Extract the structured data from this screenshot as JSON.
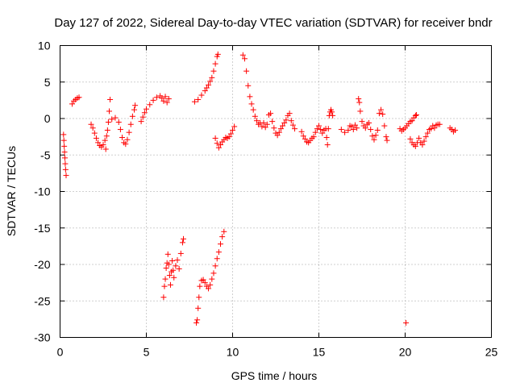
{
  "chart_data": {
    "type": "scatter",
    "title": "Day 127 of 2022, Sidereal Day-to-day VTEC variation (SDTVAR) for receiver bndr",
    "xlabel": "GPS time / hours",
    "ylabel": "SDTVAR / TECUs",
    "xlim": [
      0,
      25
    ],
    "ylim": [
      -30,
      10
    ],
    "xticks": [
      "0",
      "5",
      "10",
      "15",
      "20",
      "25"
    ],
    "yticks": [
      "10",
      "5",
      "0",
      "-5",
      "-10",
      "-15",
      "-20",
      "-25",
      "-30"
    ],
    "grid": true,
    "marker": "+",
    "marker_color": "#ff0000",
    "series": [
      {
        "name": "SDTVAR",
        "points": [
          [
            0.2,
            -2.2
          ],
          [
            0.22,
            -3.0
          ],
          [
            0.24,
            -3.8
          ],
          [
            0.26,
            -4.6
          ],
          [
            0.28,
            -5.4
          ],
          [
            0.3,
            -6.2
          ],
          [
            0.32,
            -7.0
          ],
          [
            0.35,
            -7.8
          ],
          [
            0.7,
            2.0
          ],
          [
            0.8,
            2.4
          ],
          [
            0.9,
            2.6
          ],
          [
            1.0,
            2.8
          ],
          [
            1.1,
            2.9
          ],
          [
            1.8,
            -0.8
          ],
          [
            1.9,
            -1.3
          ],
          [
            2.0,
            -2.0
          ],
          [
            2.1,
            -2.7
          ],
          [
            2.2,
            -3.3
          ],
          [
            2.3,
            -3.7
          ],
          [
            2.4,
            -3.9
          ],
          [
            2.5,
            -3.6
          ],
          [
            2.6,
            -3.0
          ],
          [
            2.65,
            -4.2
          ],
          [
            2.7,
            -2.4
          ],
          [
            2.75,
            -1.6
          ],
          [
            2.8,
            -0.5
          ],
          [
            2.85,
            1.0
          ],
          [
            2.9,
            2.6
          ],
          [
            3.0,
            -0.1
          ],
          [
            3.2,
            0.1
          ],
          [
            3.4,
            -0.5
          ],
          [
            3.5,
            -1.5
          ],
          [
            3.6,
            -2.6
          ],
          [
            3.7,
            -3.3
          ],
          [
            3.8,
            -3.5
          ],
          [
            3.9,
            -2.9
          ],
          [
            4.0,
            -1.9
          ],
          [
            4.1,
            -0.8
          ],
          [
            4.2,
            0.3
          ],
          [
            4.3,
            1.2
          ],
          [
            4.35,
            1.8
          ],
          [
            4.7,
            -0.4
          ],
          [
            4.8,
            0.2
          ],
          [
            4.9,
            0.8
          ],
          [
            5.0,
            1.3
          ],
          [
            5.2,
            1.9
          ],
          [
            5.4,
            2.5
          ],
          [
            5.6,
            2.9
          ],
          [
            5.8,
            3.1
          ],
          [
            5.9,
            2.8
          ],
          [
            6.0,
            2.4
          ],
          [
            6.1,
            3.0
          ],
          [
            6.2,
            2.2
          ],
          [
            6.3,
            2.7
          ],
          [
            6.0,
            -24.5
          ],
          [
            6.05,
            -23.0
          ],
          [
            6.1,
            -22.0
          ],
          [
            6.15,
            -20.5
          ],
          [
            6.2,
            -19.8
          ],
          [
            6.25,
            -18.6
          ],
          [
            6.3,
            -20.0
          ],
          [
            6.35,
            -21.5
          ],
          [
            6.4,
            -22.8
          ],
          [
            6.45,
            -21.0
          ],
          [
            6.5,
            -19.5
          ],
          [
            6.55,
            -20.8
          ],
          [
            6.6,
            -21.8
          ],
          [
            6.7,
            -20.2
          ],
          [
            6.8,
            -19.4
          ],
          [
            6.9,
            -20.6
          ],
          [
            7.0,
            -18.5
          ],
          [
            7.1,
            -17.0
          ],
          [
            7.15,
            -16.5
          ],
          [
            7.9,
            -28.0
          ],
          [
            7.95,
            -27.6
          ],
          [
            8.0,
            -26.0
          ],
          [
            8.05,
            -24.5
          ],
          [
            8.1,
            -23.0
          ],
          [
            8.2,
            -22.2
          ],
          [
            8.3,
            -22.1
          ],
          [
            8.4,
            -22.5
          ],
          [
            8.5,
            -23.0
          ],
          [
            8.6,
            -23.3
          ],
          [
            8.7,
            -22.8
          ],
          [
            8.8,
            -22.0
          ],
          [
            8.9,
            -21.2
          ],
          [
            9.0,
            -20.2
          ],
          [
            9.1,
            -19.2
          ],
          [
            9.2,
            -18.3
          ],
          [
            9.3,
            -17.2
          ],
          [
            9.4,
            -16.2
          ],
          [
            9.5,
            -15.5
          ],
          [
            7.8,
            2.3
          ],
          [
            8.0,
            2.6
          ],
          [
            8.2,
            3.2
          ],
          [
            8.4,
            3.8
          ],
          [
            8.5,
            4.2
          ],
          [
            8.6,
            4.6
          ],
          [
            8.7,
            5.1
          ],
          [
            8.8,
            5.6
          ],
          [
            8.9,
            6.5
          ],
          [
            9.0,
            7.5
          ],
          [
            9.1,
            8.5
          ],
          [
            9.15,
            8.8
          ],
          [
            9.0,
            -2.7
          ],
          [
            9.1,
            -3.4
          ],
          [
            9.2,
            -4.0
          ],
          [
            9.3,
            -3.6
          ],
          [
            9.4,
            -3.2
          ],
          [
            9.5,
            -2.9
          ],
          [
            9.6,
            -2.6
          ],
          [
            9.7,
            -2.7
          ],
          [
            9.8,
            -2.5
          ],
          [
            9.9,
            -2.1
          ],
          [
            10.0,
            -1.6
          ],
          [
            10.1,
            -1.1
          ],
          [
            10.6,
            8.7
          ],
          [
            10.7,
            8.2
          ],
          [
            10.8,
            6.5
          ],
          [
            10.9,
            4.5
          ],
          [
            11.0,
            3.0
          ],
          [
            11.1,
            2.0
          ],
          [
            11.2,
            1.2
          ],
          [
            11.3,
            0.3
          ],
          [
            11.4,
            -0.3
          ],
          [
            11.5,
            -0.8
          ],
          [
            11.6,
            -0.6
          ],
          [
            11.7,
            -1.1
          ],
          [
            11.8,
            -0.6
          ],
          [
            11.9,
            -1.2
          ],
          [
            12.0,
            -0.8
          ],
          [
            12.1,
            0.5
          ],
          [
            12.2,
            0.7
          ],
          [
            12.3,
            -0.4
          ],
          [
            12.4,
            -1.3
          ],
          [
            12.5,
            -2.0
          ],
          [
            12.6,
            -2.3
          ],
          [
            12.7,
            -1.9
          ],
          [
            12.8,
            -1.4
          ],
          [
            12.9,
            -1.0
          ],
          [
            13.0,
            -0.6
          ],
          [
            13.1,
            -0.2
          ],
          [
            13.2,
            0.4
          ],
          [
            13.3,
            0.7
          ],
          [
            13.4,
            -0.3
          ],
          [
            13.5,
            -0.9
          ],
          [
            13.6,
            -1.4
          ],
          [
            14.0,
            -1.8
          ],
          [
            14.1,
            -2.4
          ],
          [
            14.2,
            -2.8
          ],
          [
            14.3,
            -3.2
          ],
          [
            14.4,
            -3.3
          ],
          [
            14.5,
            -3.0
          ],
          [
            14.6,
            -2.7
          ],
          [
            14.7,
            -2.5
          ],
          [
            14.8,
            -1.9
          ],
          [
            14.9,
            -1.4
          ],
          [
            15.0,
            -1.0
          ],
          [
            15.1,
            -1.5
          ],
          [
            15.2,
            -2.0
          ],
          [
            15.3,
            -1.6
          ],
          [
            15.4,
            -1.4
          ],
          [
            15.45,
            -2.6
          ],
          [
            15.5,
            -3.6
          ],
          [
            15.55,
            -1.4
          ],
          [
            15.6,
            0.4
          ],
          [
            15.65,
            0.9
          ],
          [
            15.7,
            1.2
          ],
          [
            15.75,
            0.9
          ],
          [
            15.8,
            0.4
          ],
          [
            16.3,
            -1.5
          ],
          [
            16.5,
            -1.9
          ],
          [
            16.7,
            -1.6
          ],
          [
            16.8,
            -1.0
          ],
          [
            16.9,
            -1.1
          ],
          [
            17.0,
            -1.5
          ],
          [
            17.1,
            -0.9
          ],
          [
            17.2,
            -1.3
          ],
          [
            17.3,
            2.7
          ],
          [
            17.35,
            2.2
          ],
          [
            17.4,
            1.0
          ],
          [
            17.5,
            -0.4
          ],
          [
            17.6,
            -1.0
          ],
          [
            17.7,
            -1.3
          ],
          [
            17.8,
            -0.8
          ],
          [
            17.9,
            -0.6
          ],
          [
            18.0,
            -1.5
          ],
          [
            18.1,
            -2.4
          ],
          [
            18.2,
            -2.9
          ],
          [
            18.3,
            -2.3
          ],
          [
            18.4,
            -1.6
          ],
          [
            18.5,
            0.7
          ],
          [
            18.6,
            1.2
          ],
          [
            18.7,
            0.6
          ],
          [
            18.8,
            -1.0
          ],
          [
            18.9,
            -2.5
          ],
          [
            18.95,
            -3.0
          ],
          [
            20.05,
            -28.0
          ],
          [
            19.7,
            -1.4
          ],
          [
            19.8,
            -1.7
          ],
          [
            19.9,
            -1.5
          ],
          [
            20.0,
            -1.3
          ],
          [
            20.1,
            -1.0
          ],
          [
            20.2,
            -0.7
          ],
          [
            20.3,
            -0.4
          ],
          [
            20.4,
            -0.3
          ],
          [
            20.5,
            0.1
          ],
          [
            20.6,
            0.4
          ],
          [
            20.65,
            0.5
          ],
          [
            20.3,
            -2.8
          ],
          [
            20.4,
            -3.3
          ],
          [
            20.5,
            -3.6
          ],
          [
            20.6,
            -3.8
          ],
          [
            20.7,
            -3.3
          ],
          [
            20.8,
            -2.7
          ],
          [
            20.9,
            -3.3
          ],
          [
            21.0,
            -3.6
          ],
          [
            21.1,
            -3.1
          ],
          [
            21.2,
            -2.5
          ],
          [
            21.3,
            -2.0
          ],
          [
            21.4,
            -1.5
          ],
          [
            21.5,
            -1.4
          ],
          [
            21.6,
            -1.0
          ],
          [
            21.7,
            -1.3
          ],
          [
            21.8,
            -0.9
          ],
          [
            21.9,
            -0.8
          ],
          [
            22.0,
            -0.8
          ],
          [
            22.6,
            -1.3
          ],
          [
            22.7,
            -1.5
          ],
          [
            22.8,
            -1.8
          ],
          [
            22.9,
            -1.6
          ]
        ]
      }
    ]
  }
}
